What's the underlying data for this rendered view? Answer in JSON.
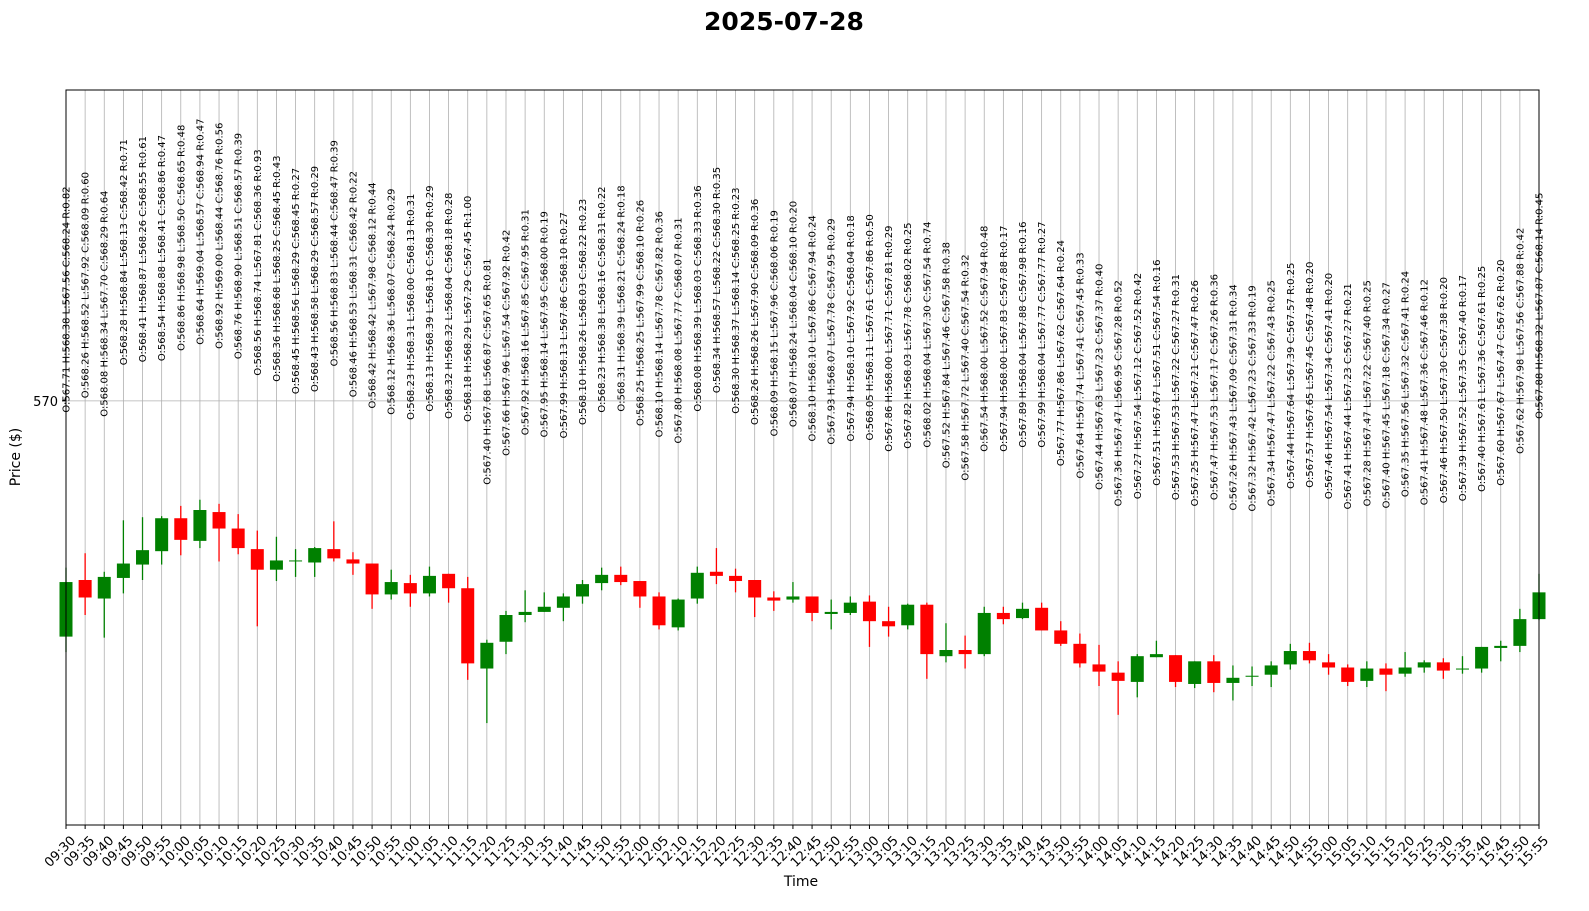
{
  "chart_data": {
    "type": "candlestick",
    "title": "2025-07-28",
    "xlabel": "Time",
    "ylabel": "Price ($)",
    "categories": [
      "09:30",
      "09:35",
      "09:40",
      "09:45",
      "09:50",
      "09:55",
      "10:00",
      "10:05",
      "10:10",
      "10:15",
      "10:20",
      "10:25",
      "10:30",
      "10:35",
      "10:40",
      "10:45",
      "10:50",
      "10:55",
      "11:00",
      "11:05",
      "11:10",
      "11:15",
      "11:20",
      "11:25",
      "11:30",
      "11:35",
      "11:40",
      "11:45",
      "11:50",
      "11:55",
      "12:00",
      "12:05",
      "12:10",
      "12:15",
      "12:20",
      "12:25",
      "12:30",
      "12:35",
      "12:40",
      "12:45",
      "12:50",
      "12:55",
      "13:00",
      "13:05",
      "13:10",
      "13:15",
      "13:20",
      "13:25",
      "13:30",
      "13:35",
      "13:40",
      "13:45",
      "13:50",
      "13:55",
      "14:00",
      "14:05",
      "14:10",
      "14:15",
      "14:20",
      "14:25",
      "14:30",
      "14:35",
      "14:40",
      "14:45",
      "14:50",
      "14:55",
      "15:00",
      "15:05",
      "15:10",
      "15:15",
      "15:20",
      "15:25",
      "15:30",
      "15:35",
      "15:40",
      "15:45",
      "15:50",
      "15:55"
    ],
    "open": [
      567.71,
      568.26,
      568.08,
      568.28,
      568.41,
      568.54,
      568.86,
      568.64,
      568.92,
      568.76,
      568.56,
      568.36,
      568.45,
      568.43,
      568.56,
      568.46,
      568.42,
      568.12,
      568.23,
      568.13,
      568.32,
      568.18,
      567.4,
      567.66,
      567.92,
      567.95,
      567.99,
      568.1,
      568.23,
      568.31,
      568.25,
      568.1,
      567.8,
      568.08,
      568.34,
      568.3,
      568.26,
      568.09,
      568.07,
      568.1,
      567.93,
      567.94,
      568.05,
      567.86,
      567.82,
      568.02,
      567.52,
      567.58,
      567.54,
      567.94,
      567.89,
      567.99,
      567.77,
      567.64,
      567.44,
      567.36,
      567.27,
      567.51,
      567.53,
      567.25,
      567.47,
      567.26,
      567.32,
      567.34,
      567.44,
      567.57,
      567.46,
      567.41,
      567.28,
      567.4,
      567.35,
      567.41,
      567.46,
      567.39,
      567.4,
      567.6,
      567.62,
      567.88
    ],
    "high": [
      568.38,
      568.52,
      568.34,
      568.84,
      568.87,
      568.88,
      568.98,
      569.04,
      569.0,
      568.9,
      568.74,
      568.68,
      568.56,
      568.58,
      568.83,
      568.53,
      568.42,
      568.36,
      568.31,
      568.39,
      568.32,
      568.29,
      567.68,
      567.96,
      568.16,
      568.14,
      568.13,
      568.26,
      568.38,
      568.39,
      568.25,
      568.14,
      568.08,
      568.39,
      568.57,
      568.37,
      568.26,
      568.15,
      568.24,
      568.1,
      568.07,
      568.1,
      568.11,
      568.0,
      568.03,
      568.04,
      567.84,
      567.72,
      568.0,
      568.0,
      568.04,
      568.04,
      567.86,
      567.74,
      567.63,
      567.47,
      567.54,
      567.67,
      567.53,
      567.47,
      567.53,
      567.43,
      567.42,
      567.47,
      567.64,
      567.65,
      567.54,
      567.44,
      567.47,
      567.45,
      567.56,
      567.48,
      567.5,
      567.52,
      567.61,
      567.67,
      567.98,
      568.32
    ],
    "low": [
      567.56,
      567.92,
      567.7,
      568.13,
      568.26,
      568.41,
      568.5,
      568.57,
      568.44,
      568.51,
      567.81,
      568.25,
      568.29,
      568.29,
      568.44,
      568.31,
      567.98,
      568.07,
      568.0,
      568.1,
      568.04,
      567.29,
      566.87,
      567.54,
      567.85,
      567.95,
      567.86,
      568.03,
      568.16,
      568.21,
      567.99,
      567.78,
      567.77,
      568.03,
      568.22,
      568.14,
      567.9,
      567.96,
      568.04,
      567.86,
      567.78,
      567.92,
      567.61,
      567.71,
      567.78,
      567.3,
      567.46,
      567.4,
      567.52,
      567.83,
      567.88,
      567.77,
      567.62,
      567.41,
      567.23,
      566.95,
      567.12,
      567.51,
      567.22,
      567.21,
      567.17,
      567.09,
      567.23,
      567.22,
      567.39,
      567.45,
      567.34,
      567.23,
      567.22,
      567.18,
      567.32,
      567.36,
      567.3,
      567.35,
      567.36,
      567.47,
      567.56,
      567.87
    ],
    "close": [
      568.24,
      568.09,
      568.29,
      568.42,
      568.55,
      568.86,
      568.65,
      568.94,
      568.76,
      568.57,
      568.36,
      568.45,
      568.45,
      568.57,
      568.47,
      568.42,
      568.12,
      568.24,
      568.13,
      568.3,
      568.18,
      567.45,
      567.65,
      567.92,
      567.95,
      568.0,
      568.1,
      568.22,
      568.31,
      568.24,
      568.1,
      567.82,
      568.07,
      568.33,
      568.3,
      568.25,
      568.09,
      568.06,
      568.1,
      567.94,
      567.95,
      568.04,
      567.86,
      567.81,
      568.02,
      567.54,
      567.58,
      567.54,
      567.94,
      567.88,
      567.98,
      567.77,
      567.64,
      567.45,
      567.37,
      567.28,
      567.52,
      567.54,
      567.27,
      567.47,
      567.26,
      567.31,
      567.33,
      567.43,
      567.57,
      567.48,
      567.41,
      567.27,
      567.4,
      567.34,
      567.41,
      567.46,
      567.38,
      567.4,
      567.61,
      567.62,
      567.88,
      568.14
    ],
    "annotations": [
      "O:567.71 H:568.38 L:567.56 C:568.24 R:0.82",
      "O:568.26 H:568.52 L:567.92 C:568.09 R:0.60",
      "O:568.08 H:568.34 L:567.70 C:568.29 R:0.64",
      "O:568.28 H:568.84 L:568.13 C:568.42 R:0.71",
      "O:568.41 H:568.87 L:568.26 C:568.55 R:0.61",
      "O:568.54 H:568.88 L:568.41 C:568.86 R:0.47",
      "O:568.86 H:568.98 L:568.50 C:568.65 R:0.48",
      "O:568.64 H:569.04 L:568.57 C:568.94 R:0.47",
      "O:568.92 H:569.00 L:568.44 C:568.76 R:0.56",
      "O:568.76 H:568.90 L:568.51 C:568.57 R:0.39",
      "O:568.56 H:568.74 L:567.81 C:568.36 R:0.93",
      "O:568.36 H:568.68 L:568.25 C:568.45 R:0.43",
      "O:568.45 H:568.56 L:568.29 C:568.45 R:0.27",
      "O:568.43 H:568.58 L:568.29 C:568.57 R:0.29",
      "O:568.56 H:568.83 L:568.44 C:568.47 R:0.39",
      "O:568.46 H:568.53 L:568.31 C:568.42 R:0.22",
      "O:568.42 H:568.42 L:567.98 C:568.12 R:0.44",
      "O:568.12 H:568.36 L:568.07 C:568.24 R:0.29",
      "O:568.23 H:568.31 L:568.00 C:568.13 R:0.31",
      "O:568.13 H:568.39 L:568.10 C:568.30 R:0.29",
      "O:568.32 H:568.32 L:568.04 C:568.18 R:0.28",
      "O:568.18 H:568.29 L:567.29 C:567.45 R:1.00",
      "O:567.40 H:567.68 L:566.87 C:567.65 R:0.81",
      "O:567.66 H:567.96 L:567.54 C:567.92 R:0.42",
      "O:567.92 H:568.16 L:567.85 C:567.95 R:0.31",
      "O:567.95 H:568.14 L:567.95 C:568.00 R:0.19",
      "O:567.99 H:568.13 L:567.86 C:568.10 R:0.27",
      "O:568.10 H:568.26 L:568.03 C:568.22 R:0.23",
      "O:568.23 H:568.38 L:568.16 C:568.31 R:0.22",
      "O:568.31 H:568.39 L:568.21 C:568.24 R:0.18",
      "O:568.25 H:568.25 L:567.99 C:568.10 R:0.26",
      "O:568.10 H:568.14 L:567.78 C:567.82 R:0.36",
      "O:567.80 H:568.08 L:567.77 C:568.07 R:0.31",
      "O:568.08 H:568.39 L:568.03 C:568.33 R:0.36",
      "O:568.34 H:568.57 L:568.22 C:568.30 R:0.35",
      "O:568.30 H:568.37 L:568.14 C:568.25 R:0.23",
      "O:568.26 H:568.26 L:567.90 C:568.09 R:0.36",
      "O:568.09 H:568.15 L:567.96 C:568.06 R:0.19",
      "O:568.07 H:568.24 L:568.04 C:568.10 R:0.20",
      "O:568.10 H:568.10 L:567.86 C:567.94 R:0.24",
      "O:567.93 H:568.07 L:567.78 C:567.95 R:0.29",
      "O:567.94 H:568.10 L:567.92 C:568.04 R:0.18",
      "O:568.05 H:568.11 L:567.61 C:567.86 R:0.50",
      "O:567.86 H:568.00 L:567.71 C:567.81 R:0.29",
      "O:567.82 H:568.03 L:567.78 C:568.02 R:0.25",
      "O:568.02 H:568.04 L:567.30 C:567.54 R:0.74",
      "O:567.52 H:567.84 L:567.46 C:567.58 R:0.38",
      "O:567.58 H:567.72 L:567.40 C:567.54 R:0.32",
      "O:567.54 H:568.00 L:567.52 C:567.94 R:0.48",
      "O:567.94 H:568.00 L:567.83 C:567.88 R:0.17",
      "O:567.89 H:568.04 L:567.88 C:567.98 R:0.16",
      "O:567.99 H:568.04 L:567.77 C:567.77 R:0.27",
      "O:567.77 H:567.86 L:567.62 C:567.64 R:0.24",
      "O:567.64 H:567.74 L:567.41 C:567.45 R:0.33",
      "O:567.44 H:567.63 L:567.23 C:567.37 R:0.40",
      "O:567.36 H:567.47 L:566.95 C:567.28 R:0.52",
      "O:567.27 H:567.54 L:567.12 C:567.52 R:0.42",
      "O:567.51 H:567.67 L:567.51 C:567.54 R:0.16",
      "O:567.53 H:567.53 L:567.22 C:567.27 R:0.31",
      "O:567.25 H:567.47 L:567.21 C:567.47 R:0.26",
      "O:567.47 H:567.53 L:567.17 C:567.26 R:0.36",
      "O:567.26 H:567.43 L:567.09 C:567.31 R:0.34",
      "O:567.32 H:567.42 L:567.23 C:567.33 R:0.19",
      "O:567.34 H:567.47 L:567.22 C:567.43 R:0.25",
      "O:567.44 H:567.64 L:567.39 C:567.57 R:0.25",
      "O:567.57 H:567.65 L:567.45 C:567.48 R:0.20",
      "O:567.46 H:567.54 L:567.34 C:567.41 R:0.20",
      "O:567.41 H:567.44 L:567.23 C:567.27 R:0.21",
      "O:567.28 H:567.47 L:567.22 C:567.40 R:0.25",
      "O:567.40 H:567.45 L:567.18 C:567.34 R:0.27",
      "O:567.35 H:567.56 L:567.32 C:567.41 R:0.24",
      "O:567.41 H:567.48 L:567.36 C:567.46 R:0.12",
      "O:567.46 H:567.50 L:567.30 C:567.38 R:0.20",
      "O:567.39 H:567.52 L:567.35 C:567.40 R:0.17",
      "O:567.40 H:567.61 L:567.36 C:567.61 R:0.25",
      "O:567.60 H:567.67 L:567.47 C:567.62 R:0.20",
      "O:567.62 H:567.98 L:567.56 C:567.88 R:0.42",
      "O:567.88 H:568.32 L:567.87 C:568.14 R:0.45"
    ],
    "up_color": "#008000",
    "down_color": "#ff0000",
    "ylim": [
      565.88,
      573.02
    ],
    "yticks": [
      570
    ],
    "grid": true
  }
}
